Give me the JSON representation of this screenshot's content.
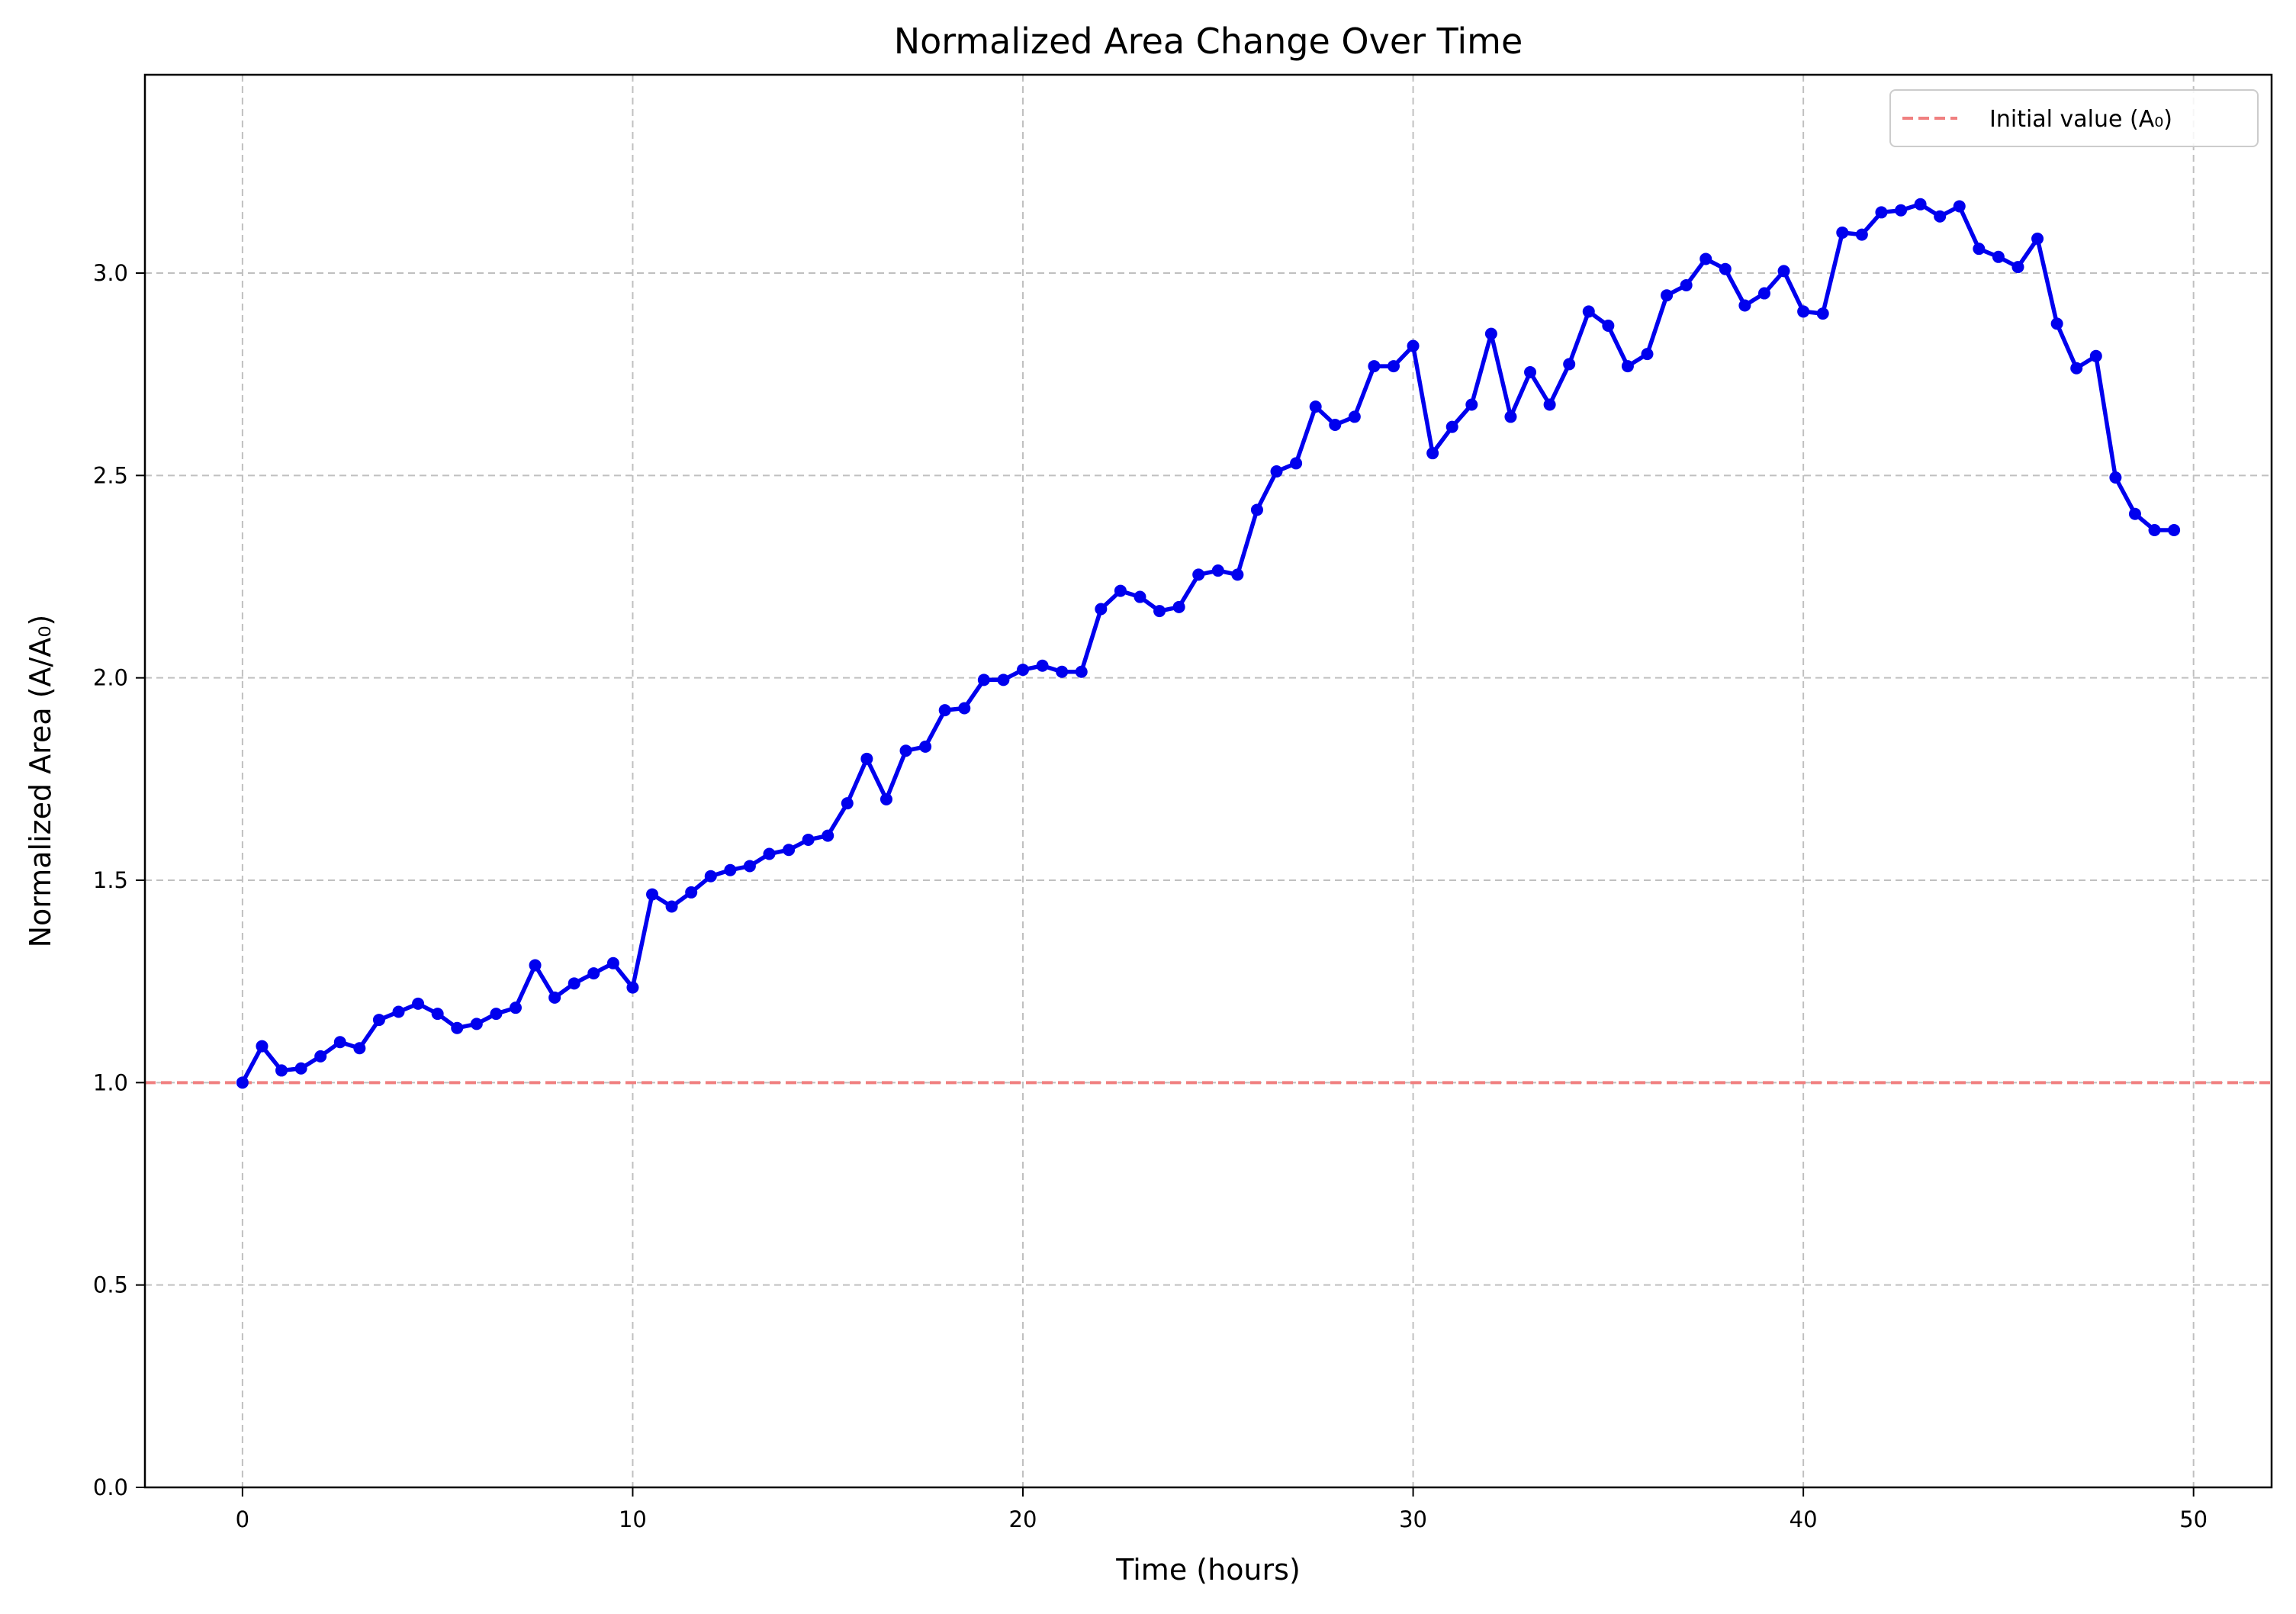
{
  "chart_data": {
    "type": "line",
    "title": "Normalized Area Change Over Time",
    "xlabel": "Time (hours)",
    "ylabel": "Normalized Area (A/A₀)",
    "xlim": [
      -2.5,
      52
    ],
    "ylim": [
      0,
      3.49
    ],
    "xticks": [
      0,
      10,
      20,
      30,
      40,
      50
    ],
    "yticks": [
      0.0,
      0.5,
      1.0,
      1.5,
      2.0,
      2.5,
      3.0
    ],
    "xtick_labels": [
      "0",
      "10",
      "20",
      "30",
      "40",
      "50"
    ],
    "ytick_labels": [
      "0.0",
      "0.5",
      "1.0",
      "1.5",
      "2.0",
      "2.5",
      "3.0"
    ],
    "grid": true,
    "legend": {
      "position": "top-right",
      "entries": [
        {
          "label": "Initial value (A₀)",
          "style": "dashed"
        }
      ]
    },
    "reference_line": {
      "y": 1.0,
      "color": "#f08080",
      "style": "dashed"
    },
    "series": [
      {
        "color": "#0000ee",
        "marker": "circle",
        "x": [
          0,
          0.5,
          1,
          1.5,
          2,
          2.5,
          3,
          3.5,
          4,
          4.5,
          5,
          5.5,
          6,
          6.5,
          7,
          7.5,
          8,
          8.5,
          9,
          9.5,
          10,
          10.5,
          11,
          11.5,
          12,
          12.5,
          13,
          13.5,
          14,
          14.5,
          15,
          15.5,
          16,
          16.5,
          17,
          17.5,
          18,
          18.5,
          19,
          19.5,
          20,
          20.5,
          21,
          21.5,
          22,
          22.5,
          23,
          23.5,
          24,
          24.5,
          25,
          25.5,
          26,
          26.5,
          27,
          27.5,
          28,
          28.5,
          29,
          29.5,
          30,
          30.5,
          31,
          31.5,
          32,
          32.5,
          33,
          33.5,
          34,
          34.5,
          35,
          35.5,
          36,
          36.5,
          37,
          37.5,
          38,
          38.5,
          39,
          39.5,
          40,
          40.5,
          41,
          41.5,
          42,
          42.5,
          43,
          43.5,
          44,
          44.5,
          45,
          45.5,
          46,
          46.5,
          47,
          47.5,
          48,
          48.5,
          49,
          49.5
        ],
        "y": [
          1.0,
          1.09,
          1.03,
          1.035,
          1.065,
          1.1,
          1.085,
          1.155,
          1.175,
          1.195,
          1.17,
          1.135,
          1.145,
          1.17,
          1.185,
          1.29,
          1.21,
          1.245,
          1.27,
          1.295,
          1.235,
          1.465,
          1.435,
          1.47,
          1.51,
          1.525,
          1.535,
          1.565,
          1.575,
          1.6,
          1.61,
          1.69,
          1.8,
          1.7,
          1.82,
          1.83,
          1.92,
          1.925,
          1.995,
          1.995,
          2.02,
          2.03,
          2.015,
          2.015,
          2.17,
          2.215,
          2.2,
          2.165,
          2.175,
          2.255,
          2.265,
          2.255,
          2.415,
          2.51,
          2.53,
          2.67,
          2.625,
          2.645,
          2.77,
          2.77,
          2.82,
          2.555,
          2.62,
          2.675,
          2.85,
          2.645,
          2.755,
          2.675,
          2.775,
          2.905,
          2.87,
          2.77,
          2.8,
          2.945,
          2.97,
          3.035,
          3.01,
          2.92,
          2.95,
          3.005,
          2.905,
          2.9,
          3.1,
          3.095,
          3.15,
          3.155,
          3.17,
          3.14,
          3.165,
          3.06,
          3.04,
          3.015,
          3.085,
          2.875,
          2.765,
          2.795,
          2.495,
          2.405,
          2.365,
          2.365
        ]
      }
    ]
  },
  "colors": {
    "series_line": "#0000ee",
    "reference_line": "#f08080",
    "grid": "#c0c0c0",
    "axes": "#000000"
  }
}
